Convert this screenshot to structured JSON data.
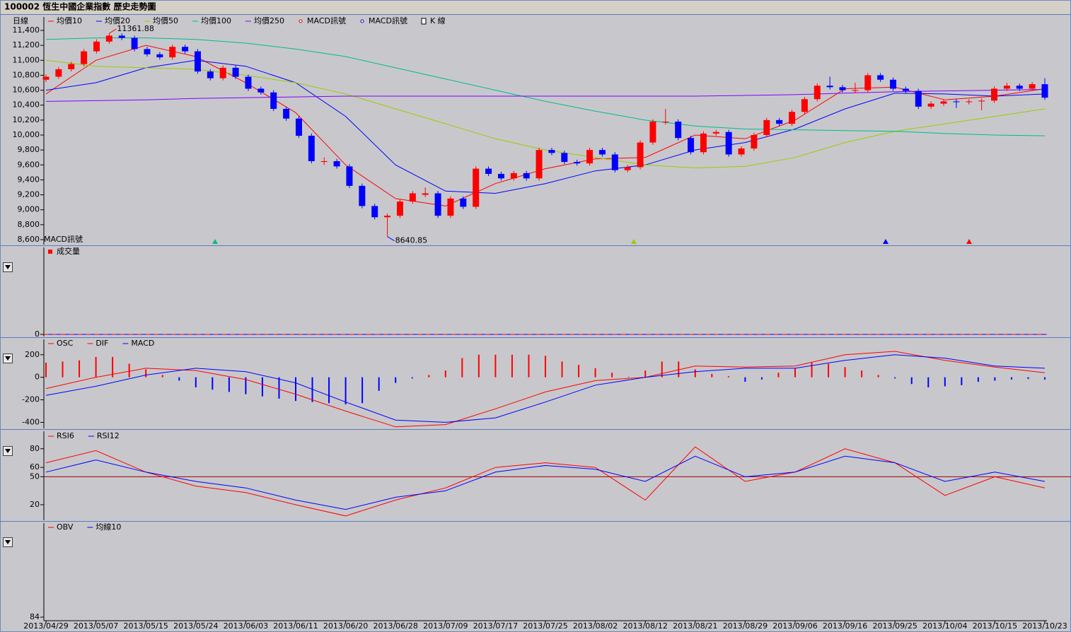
{
  "header": {
    "title": "100002 恆生中國企業指數  歷史走勢圖"
  },
  "chart_data": [
    {
      "type": "candlestick",
      "period_label": "日線",
      "categories": [
        "2013/04/29",
        "2013/05/07",
        "2013/05/15",
        "2013/05/24",
        "2013/06/03",
        "2013/06/11",
        "2013/06/20",
        "2013/06/28",
        "2013/07/09",
        "2013/07/17",
        "2013/07/25",
        "2013/08/02",
        "2013/08/12",
        "2013/08/21",
        "2013/08/29",
        "2013/09/06",
        "2013/09/16",
        "2013/09/25",
        "2013/10/04",
        "2013/10/15",
        "2013/10/23"
      ],
      "ylim": [
        8600,
        11400
      ],
      "yticks": [
        {
          "value": 8600,
          "label": "8,600"
        },
        {
          "value": 8800,
          "label": "8,800"
        },
        {
          "value": 9000,
          "label": "9,000"
        },
        {
          "value": 9200,
          "label": "9,200"
        },
        {
          "value": 9400,
          "label": "9,400"
        },
        {
          "value": 9600,
          "label": "9,600"
        },
        {
          "value": 9800,
          "label": "9,800"
        },
        {
          "value": 10000,
          "label": "10,000"
        },
        {
          "value": 10200,
          "label": "10,200"
        },
        {
          "value": 10400,
          "label": "10,400"
        },
        {
          "value": 10600,
          "label": "10,600"
        },
        {
          "value": 10800,
          "label": "10,800"
        },
        {
          "value": 11000,
          "label": "11,000"
        },
        {
          "value": 11200,
          "label": "11,200"
        },
        {
          "value": 11400,
          "label": "11,400"
        }
      ],
      "series": [
        {
          "name": "均價10",
          "color": "#ff0000",
          "values": [
            10550,
            11000,
            11200,
            11050,
            10700,
            10300,
            9600,
            9150,
            9050,
            9350,
            9550,
            9680,
            9700,
            10000,
            9950,
            10200,
            10620,
            10640,
            10470,
            10520,
            10620
          ]
        },
        {
          "name": "均價20",
          "color": "#0000ff",
          "values": [
            10600,
            10700,
            10900,
            11000,
            10920,
            10700,
            10250,
            9600,
            9250,
            9220,
            9350,
            9520,
            9600,
            9800,
            9900,
            10080,
            10350,
            10560,
            10550,
            10520,
            10550
          ]
        },
        {
          "name": "均價50",
          "color": "#99cc00",
          "values": [
            11000,
            10920,
            10900,
            10880,
            10800,
            10700,
            10550,
            10350,
            10150,
            9950,
            9800,
            9700,
            9600,
            9560,
            9580,
            9700,
            9900,
            10050,
            10150,
            10250,
            10350
          ]
        },
        {
          "name": "均價100",
          "color": "#00bb88",
          "values": [
            11280,
            11300,
            11300,
            11280,
            11230,
            11150,
            11050,
            10900,
            10750,
            10600,
            10450,
            10320,
            10200,
            10120,
            10080,
            10070,
            10060,
            10050,
            10020,
            10000,
            9990
          ]
        },
        {
          "name": "均價250",
          "color": "#8000ff",
          "values": [
            10450,
            10460,
            10470,
            10490,
            10500,
            10510,
            10520,
            10520,
            10520,
            10520,
            10520,
            10520,
            10520,
            10520,
            10530,
            10540,
            10560,
            10580,
            10590,
            10600,
            10610
          ]
        }
      ],
      "signal_legend": [
        {
          "name": "MACD訊號",
          "color": "#cc0000"
        },
        {
          "name": "MACD訊號",
          "color": "#0000cc"
        }
      ],
      "signal_label": "MACD訊號",
      "candles": {
        "name": "K 線",
        "up_color": "#ff0000",
        "down_color": "#0000ff",
        "ohlc": [
          [
            10740,
            10810,
            10710,
            10780
          ],
          [
            10780,
            10910,
            10750,
            10880
          ],
          [
            10880,
            10980,
            10850,
            10950
          ],
          [
            10950,
            11150,
            10920,
            11120
          ],
          [
            11120,
            11280,
            11090,
            11250
          ],
          [
            11250,
            11361.88,
            11220,
            11330
          ],
          [
            11330,
            11360,
            11270,
            11300
          ],
          [
            11300,
            11330,
            11120,
            11150
          ],
          [
            11150,
            11180,
            11050,
            11080
          ],
          [
            11080,
            11110,
            11010,
            11040
          ],
          [
            11040,
            11210,
            11010,
            11180
          ],
          [
            11180,
            11210,
            11090,
            11120
          ],
          [
            11120,
            11150,
            10820,
            10850
          ],
          [
            10850,
            10880,
            10730,
            10760
          ],
          [
            10760,
            10930,
            10730,
            10900
          ],
          [
            10900,
            10930,
            10750,
            10780
          ],
          [
            10780,
            10810,
            10590,
            10620
          ],
          [
            10620,
            10650,
            10540,
            10570
          ],
          [
            10570,
            10600,
            10320,
            10350
          ],
          [
            10350,
            10380,
            10190,
            10220
          ],
          [
            10220,
            10250,
            9960,
            9990
          ],
          [
            9990,
            10020,
            9620,
            9650
          ],
          [
            9640,
            9700,
            9600,
            9650
          ],
          [
            9650,
            9680,
            9550,
            9580
          ],
          [
            9580,
            9610,
            9290,
            9320
          ],
          [
            9320,
            9350,
            9020,
            9050
          ],
          [
            9050,
            9080,
            8870,
            8900
          ],
          [
            8900,
            8950,
            8640.85,
            8920
          ],
          [
            8920,
            9140,
            8890,
            9110
          ],
          [
            9110,
            9250,
            9080,
            9220
          ],
          [
            9200,
            9300,
            9170,
            9220
          ],
          [
            9220,
            9250,
            8890,
            8920
          ],
          [
            8920,
            9180,
            8890,
            9150
          ],
          [
            9150,
            9180,
            9010,
            9040
          ],
          [
            9040,
            9580,
            9010,
            9550
          ],
          [
            9550,
            9580,
            9450,
            9480
          ],
          [
            9480,
            9510,
            9390,
            9420
          ],
          [
            9420,
            9520,
            9390,
            9490
          ],
          [
            9490,
            9520,
            9390,
            9420
          ],
          [
            9420,
            9830,
            9390,
            9800
          ],
          [
            9800,
            9830,
            9730,
            9760
          ],
          [
            9760,
            9790,
            9610,
            9640
          ],
          [
            9640,
            9670,
            9590,
            9620
          ],
          [
            9620,
            9830,
            9590,
            9800
          ],
          [
            9800,
            9830,
            9710,
            9740
          ],
          [
            9740,
            9770,
            9500,
            9530
          ],
          [
            9530,
            9600,
            9500,
            9570
          ],
          [
            9570,
            9930,
            9540,
            9900
          ],
          [
            9900,
            10210,
            9870,
            10180
          ],
          [
            10170,
            10350,
            10140,
            10180
          ],
          [
            10180,
            10210,
            9930,
            9960
          ],
          [
            9960,
            9990,
            9740,
            9770
          ],
          [
            9770,
            10050,
            9740,
            10020
          ],
          [
            10020,
            10070,
            9990,
            10040
          ],
          [
            10040,
            10070,
            9710,
            9740
          ],
          [
            9740,
            9850,
            9710,
            9820
          ],
          [
            9820,
            10030,
            9790,
            10000
          ],
          [
            10000,
            10230,
            9970,
            10200
          ],
          [
            10200,
            10230,
            10120,
            10150
          ],
          [
            10150,
            10340,
            10120,
            10310
          ],
          [
            10310,
            10510,
            10280,
            10480
          ],
          [
            10480,
            10690,
            10450,
            10660
          ],
          [
            10660,
            10780,
            10610,
            10640
          ],
          [
            10640,
            10670,
            10570,
            10600
          ],
          [
            10590,
            10700,
            10560,
            10600
          ],
          [
            10600,
            10830,
            10570,
            10800
          ],
          [
            10800,
            10830,
            10710,
            10740
          ],
          [
            10740,
            10770,
            10590,
            10620
          ],
          [
            10620,
            10650,
            10560,
            10590
          ],
          [
            10590,
            10620,
            10350,
            10380
          ],
          [
            10380,
            10450,
            10350,
            10420
          ],
          [
            10420,
            10480,
            10390,
            10450
          ],
          [
            10450,
            10480,
            10360,
            10440
          ],
          [
            10440,
            10480,
            10410,
            10450
          ],
          [
            10450,
            10490,
            10330,
            10460
          ],
          [
            10460,
            10650,
            10430,
            10620
          ],
          [
            10620,
            10700,
            10590,
            10660
          ],
          [
            10660,
            10690,
            10590,
            10620
          ],
          [
            10620,
            10710,
            10590,
            10680
          ],
          [
            10680,
            10760,
            10470,
            10500
          ]
        ]
      }
    },
    {
      "type": "bar",
      "series": [
        {
          "name": "成交量",
          "color": "#ff0000"
        }
      ],
      "yticks": [
        0
      ]
    },
    {
      "type": "macd",
      "ylim": [
        -460,
        230
      ],
      "yticks": [
        -400,
        -200,
        0,
        200
      ],
      "osc": {
        "name": "OSC",
        "up_color": "#ff0000",
        "down_color": "#0000ff",
        "values": [
          130,
          140,
          150,
          180,
          180,
          120,
          70,
          20,
          -30,
          -90,
          -110,
          -130,
          -150,
          -170,
          -190,
          -210,
          -220,
          -230,
          -240,
          -230,
          -120,
          -50,
          -10,
          20,
          60,
          170,
          200,
          200,
          200,
          200,
          190,
          140,
          110,
          80,
          40,
          5,
          60,
          140,
          140,
          70,
          30,
          10,
          -40,
          -20,
          40,
          80,
          130,
          120,
          90,
          60,
          20,
          -10,
          -60,
          -90,
          -80,
          -70,
          -40,
          -30,
          -20,
          -15,
          -20
        ]
      },
      "series": [
        {
          "name": "DIF",
          "color": "#ff0000",
          "values": [
            -100,
            0,
            80,
            60,
            -20,
            -150,
            -300,
            -440,
            -420,
            -280,
            -130,
            -30,
            0,
            100,
            90,
            100,
            200,
            230,
            150,
            90,
            40
          ]
        },
        {
          "name": "MACD",
          "color": "#0000ff",
          "values": [
            -160,
            -80,
            20,
            80,
            50,
            -50,
            -220,
            -380,
            -400,
            -360,
            -220,
            -70,
            0,
            50,
            80,
            80,
            150,
            200,
            170,
            100,
            80
          ]
        }
      ]
    },
    {
      "type": "line",
      "ylim": [
        3,
        98
      ],
      "yticks": [
        20,
        50,
        60,
        80
      ],
      "reference_line": {
        "value": 50,
        "color": "#a00000"
      },
      "series": [
        {
          "name": "RSI6",
          "color": "#ff0000",
          "values": [
            65,
            78,
            55,
            40,
            33,
            20,
            8,
            25,
            38,
            60,
            65,
            60,
            25,
            82,
            45,
            55,
            80,
            65,
            30,
            50,
            38
          ]
        },
        {
          "name": "RSI12",
          "color": "#0000ff",
          "values": [
            55,
            68,
            55,
            45,
            38,
            25,
            15,
            28,
            35,
            55,
            62,
            58,
            45,
            72,
            50,
            55,
            72,
            65,
            45,
            55,
            45
          ]
        }
      ]
    },
    {
      "type": "line",
      "yticks": [
        84
      ],
      "series": [
        {
          "name": "OBV",
          "color": "#ff0000"
        },
        {
          "name": "均線10",
          "color": "#0000ff"
        }
      ]
    }
  ]
}
